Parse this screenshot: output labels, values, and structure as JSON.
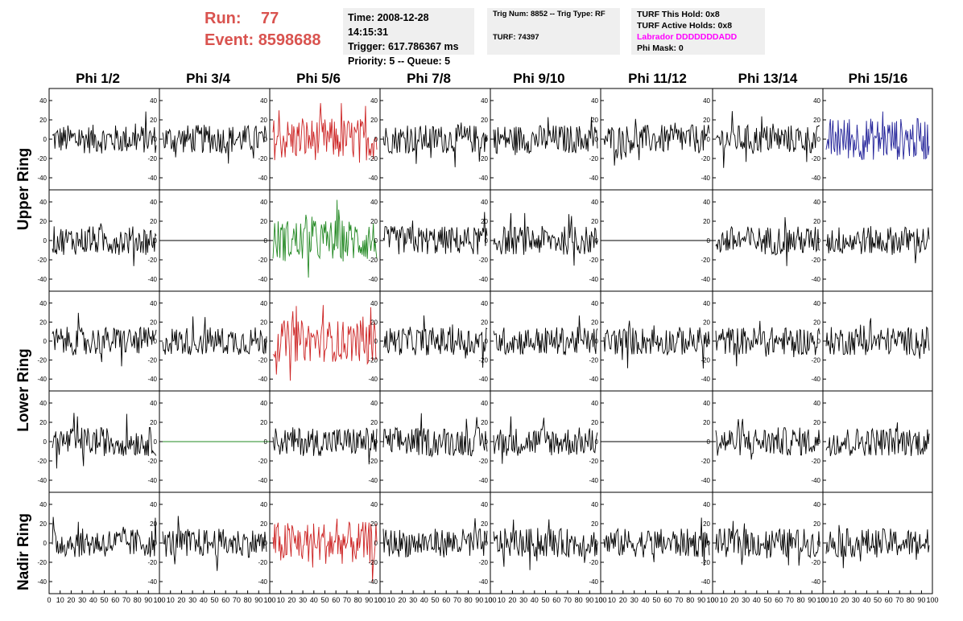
{
  "header": {
    "run_label": "Run:",
    "run_value": "77",
    "event_label": "Event:",
    "event_value": "8598688"
  },
  "info_panel_1": {
    "time": "Time: 2008-12-28 14:15:31",
    "trigger": "Trigger: 617.786367 ms",
    "priority": "Priority: 5 -- Queue: 5"
  },
  "info_panel_2": {
    "trig": "Trig Num: 8852 -- Trig Type: RF",
    "turf": "TURF: 74397"
  },
  "info_panel_3": {
    "this_hold": "TURF This Hold: 0x8",
    "active_holds": "TURF Active Holds: 0x8",
    "labrador": "Labrador DDDDDDDADD",
    "phi_mask": "Phi Mask: 0"
  },
  "columns": [
    "Phi 1/2",
    "Phi 3/4",
    "Phi 5/6",
    "Phi 7/8",
    "Phi 9/10",
    "Phi 11/12",
    "Phi 13/14",
    "Phi 15/16"
  ],
  "rows": {
    "upper": "Upper Ring",
    "lower": "Lower Ring",
    "nadir": "Nadir Ring"
  },
  "colors": {
    "trace": "#000000",
    "red": "#cc2222",
    "green": "#228822",
    "blue": "#222299",
    "run_text": "#d9534f",
    "labrador_text": "#ff00ff"
  },
  "x_axis_ticks": [
    "0",
    "10",
    "20",
    "30",
    "40",
    "50",
    "60",
    "70",
    "80",
    "90",
    "100"
  ],
  "y_axis_ticks": [
    "40",
    "20",
    "0",
    "-20",
    "-40"
  ],
  "trace_colors": [
    [
      "black",
      "black",
      "red",
      "black",
      "black",
      "black",
      "black",
      "blue"
    ],
    [
      "black",
      "flat",
      "green",
      "black",
      "black",
      "flat",
      "black",
      "black"
    ],
    [
      "black",
      "black",
      "red",
      "black",
      "black",
      "black",
      "black",
      "black"
    ],
    [
      "black",
      "flat-green",
      "black",
      "black",
      "black",
      "flat",
      "black",
      "black"
    ],
    [
      "black",
      "black",
      "red",
      "black",
      "black",
      "black",
      "black",
      "black"
    ]
  ]
}
